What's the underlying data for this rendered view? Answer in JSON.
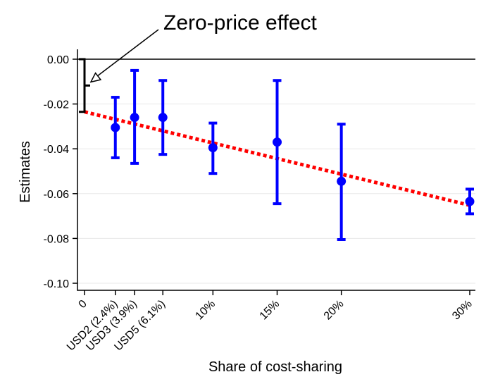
{
  "chart_data": {
    "type": "scatter",
    "annotation": "Zero-price effect",
    "xlabel": "Share of cost-sharing",
    "ylabel": "Estimates",
    "ylim": [
      -0.1,
      0.0
    ],
    "xlim": [
      0,
      30
    ],
    "y_ticks": [
      {
        "value": 0.0,
        "label": "0.00"
      },
      {
        "value": -0.02,
        "label": "-0.02"
      },
      {
        "value": -0.04,
        "label": "-0.04"
      },
      {
        "value": -0.06,
        "label": "-0.06"
      },
      {
        "value": -0.08,
        "label": "-0.08"
      },
      {
        "value": -0.1,
        "label": "-0.10"
      }
    ],
    "x_ticks": [
      {
        "value": 0,
        "label": "0"
      },
      {
        "value": 2.4,
        "label": "USD2 (2.4%)"
      },
      {
        "value": 3.9,
        "label": "USD3 (3.9%)"
      },
      {
        "value": 6.1,
        "label": "USD5 (6.1%)"
      },
      {
        "value": 10,
        "label": "10%"
      },
      {
        "value": 15,
        "label": "15%"
      },
      {
        "value": 20,
        "label": "20%"
      },
      {
        "value": 30,
        "label": "30%"
      }
    ],
    "points": [
      {
        "x": 2.4,
        "y": -0.0305,
        "ci_low": -0.044,
        "ci_high": -0.017
      },
      {
        "x": 3.9,
        "y": -0.026,
        "ci_low": -0.0465,
        "ci_high": -0.005
      },
      {
        "x": 6.1,
        "y": -0.026,
        "ci_low": -0.0425,
        "ci_high": -0.0095
      },
      {
        "x": 10,
        "y": -0.0395,
        "ci_low": -0.051,
        "ci_high": -0.0285
      },
      {
        "x": 15,
        "y": -0.037,
        "ci_low": -0.0645,
        "ci_high": -0.0095
      },
      {
        "x": 20,
        "y": -0.0545,
        "ci_low": -0.0805,
        "ci_high": -0.029
      },
      {
        "x": 30,
        "y": -0.0635,
        "ci_low": -0.069,
        "ci_high": -0.058
      }
    ],
    "fit_line": {
      "x": [
        0,
        30
      ],
      "y": [
        -0.0235,
        -0.0652
      ]
    },
    "reference_line": 0.0,
    "grid": "horizontal",
    "colors": {
      "points": "#0000ff",
      "fit": "#ff0000",
      "axis": "#000000",
      "grid": "#e8e8e8"
    }
  }
}
